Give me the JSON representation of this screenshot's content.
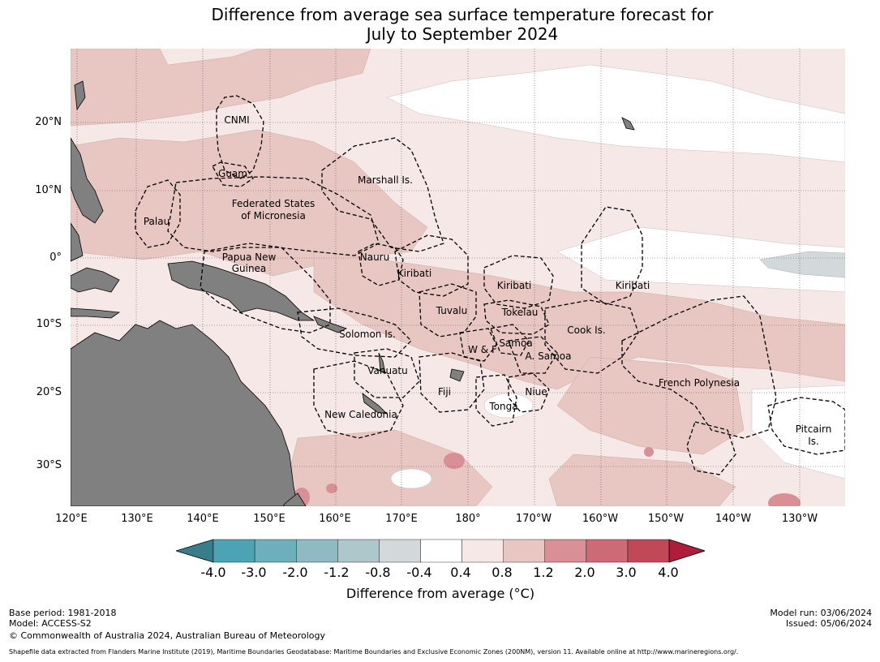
{
  "title_line1": "Difference from average sea surface temperature forecast for",
  "title_line2": "July to September 2024",
  "lat_labels": [
    "20°N",
    "10°N",
    "0°",
    "10°S",
    "20°S",
    "30°S"
  ],
  "lon_labels": [
    "120°E",
    "130°E",
    "140°E",
    "150°E",
    "160°E",
    "170°E",
    "180°",
    "170°W",
    "160°W",
    "150°W",
    "140°W",
    "130°W"
  ],
  "regions": {
    "cnmi": "CNMI",
    "guam": "Guam",
    "marshall": "Marshall Is.",
    "fsm1": "Federated States",
    "fsm2": "of Micronesia",
    "palau": "Palau",
    "png1": "Papua New",
    "png2": "Guinea",
    "nauru": "Nauru",
    "kiribati_w": "Kiribati",
    "kiribati_c": "Kiribati",
    "kiribati_e": "Kiribati",
    "tuvalu": "Tuvalu",
    "tokelau": "Tokelau",
    "cook": "Cook Is.",
    "solomon": "Solomon Is.",
    "samoa": "Samoa",
    "wf": "W & F",
    "asamoa": "A. Samoa",
    "vanuatu": "Vanuatu",
    "fiji": "Fiji",
    "niue": "Niue",
    "tonga": "Tonga",
    "frpoly": "French Polynesia",
    "newcal": "New Caledonia",
    "pitcairn1": "Pitcairn",
    "pitcairn2": "Is."
  },
  "colorbar": {
    "labels": [
      "-4.0",
      "-3.0",
      "-2.0",
      "-1.2",
      "-0.8",
      "-0.4",
      "0.4",
      "0.8",
      "1.2",
      "2.0",
      "3.0",
      "4.0"
    ],
    "colors": [
      "#3a7d8a",
      "#4ba3b3",
      "#6eafbd",
      "#8fbac3",
      "#aec7cb",
      "#d3d9da",
      "#ffffff",
      "#f5e8e6",
      "#e8c6c2",
      "#d88f95",
      "#cd6a75",
      "#c14857",
      "#ae1e3a"
    ],
    "title": "Difference from average (°C)"
  },
  "footer": {
    "base_period": "Base period: 1981-2018",
    "model": "Model: ACCESS-S2",
    "copyright": "© Commonwealth of Australia 2024, Australian Bureau of Meteorology",
    "model_run": "Model run: 03/06/2024",
    "issued": "Issued: 05/06/2024",
    "source": "Shapefile data extracted from Flanders Marine Institute (2019), Maritime Boundaries Geodatabase: Maritime Boundaries and Exclusive Economic Zones (200NM), version 11. Available online at http://www.marineregions.org/."
  },
  "map_colors": {
    "land": "#808080",
    "weak_warm": "#f5e8e6",
    "warm": "#e8c6c2",
    "strong_warm": "#d88f95",
    "neutral": "#ffffff",
    "cool": "#d3d9da"
  }
}
